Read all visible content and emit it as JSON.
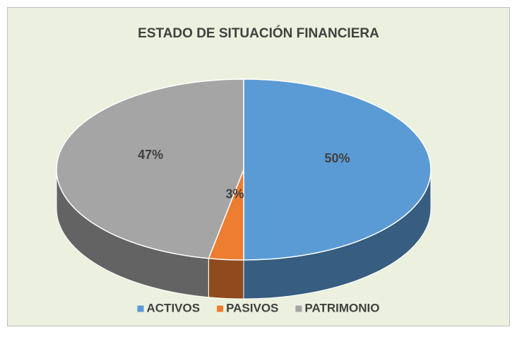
{
  "chart_data": {
    "type": "pie",
    "title": "ESTADO DE SITUACIÓN FINANCIERA",
    "categories": [
      "ACTIVOS",
      "PASIVOS",
      "PATRIMONIO"
    ],
    "values": [
      50,
      3,
      47
    ],
    "value_labels": [
      "50%",
      "3%",
      "47%"
    ],
    "colors": [
      "#5b9bd5",
      "#ed7d31",
      "#a5a5a5"
    ],
    "legend": "bottom"
  }
}
